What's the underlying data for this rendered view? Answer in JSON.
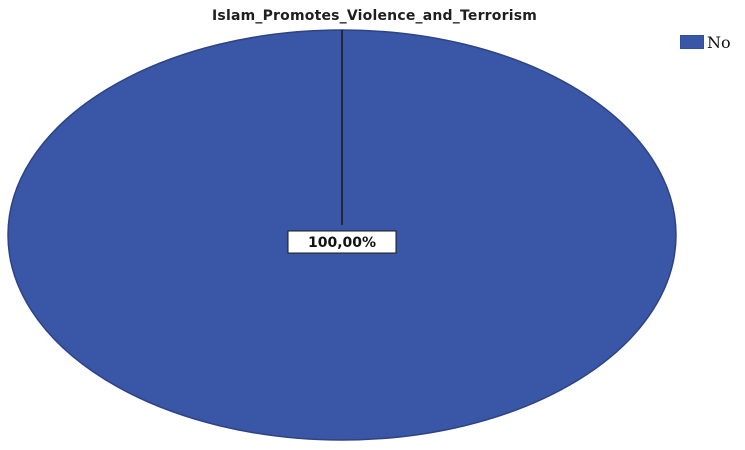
{
  "chart_data": {
    "type": "pie",
    "title": "Islam_Promotes_Violence_and_Terrorism",
    "categories": [
      "No"
    ],
    "values": [
      100.0
    ],
    "data_labels": [
      "100,00%"
    ],
    "legend": {
      "placement": "top-right",
      "entries": [
        "No"
      ]
    },
    "colors": {
      "No": "#3a56a7",
      "outline": "#2d4383",
      "divider": "#1a1a1a",
      "label_box": "#ffffff",
      "label_text": "#111111"
    }
  }
}
